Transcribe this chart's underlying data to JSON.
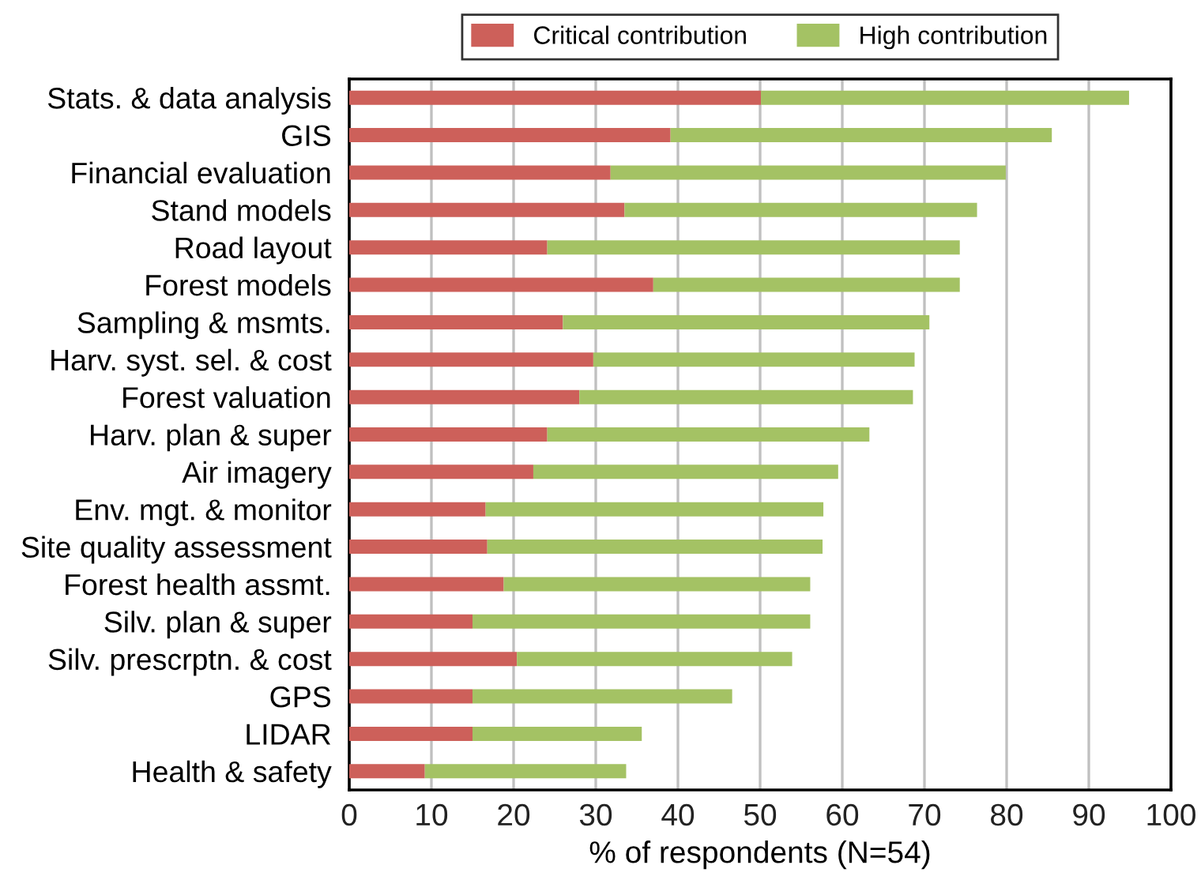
{
  "chart_data": {
    "type": "bar",
    "orientation": "horizontal",
    "stacked": true,
    "categories": [
      "Stats. & data analysis",
      "GIS",
      "Financial evaluation",
      "Stand models",
      "Road layout",
      "Forest models",
      "Sampling & msmts.",
      "Harv. syst. sel. & cost",
      "Forest valuation",
      "Harv. plan & super",
      "Air imagery",
      "Env. mgt. & monitor",
      "Site quality assessment",
      "Forest health assmt.",
      "Silv. plan & super",
      "Silv. prescrptn. & cost",
      "GPS",
      "LIDAR",
      "Health & safety"
    ],
    "series": [
      {
        "name": "Critical contribution",
        "color": "#cd605a",
        "values": [
          50.1,
          39.1,
          31.8,
          33.5,
          24.1,
          37.0,
          26.0,
          29.7,
          28.0,
          24.1,
          22.4,
          16.6,
          16.8,
          18.8,
          15.0,
          20.4,
          15.0,
          15.0,
          9.2
        ]
      },
      {
        "name": "High contribution",
        "color": "#a4c264",
        "values": [
          44.8,
          46.4,
          48.1,
          42.9,
          50.2,
          37.3,
          44.6,
          39.1,
          40.6,
          39.2,
          37.1,
          41.1,
          40.8,
          37.3,
          41.1,
          33.5,
          31.6,
          20.6,
          24.5
        ]
      }
    ],
    "xlabel": "% of respondents (N=54)",
    "xlim": [
      0,
      100
    ],
    "xticks": [
      0,
      10,
      20,
      30,
      40,
      50,
      60,
      70,
      80,
      90,
      100
    ],
    "grid": "x",
    "legend": "top"
  }
}
